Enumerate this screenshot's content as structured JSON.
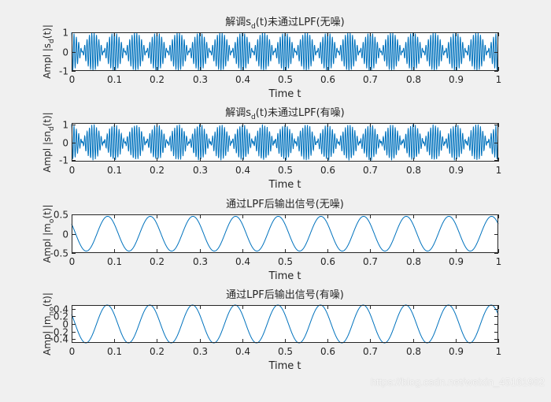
{
  "chart_data": [
    {
      "type": "line",
      "title": "解调s_d(t)未通过LPF(无噪)",
      "title_parts": [
        "解调s",
        "d",
        "(t)未通过LPF(无噪)"
      ],
      "xlabel": "Time t",
      "ylabel_parts": [
        "Ampl |s",
        "d",
        "(t)|"
      ],
      "xlim": [
        0,
        1
      ],
      "ylim": [
        -1,
        1
      ],
      "xticks": [
        "0",
        "0.1",
        "0.2",
        "0.3",
        "0.4",
        "0.5",
        "0.6",
        "0.7",
        "0.8",
        "0.9",
        "1"
      ],
      "yticks": [
        "-1",
        "0",
        "1"
      ],
      "yticks_values": [
        -1,
        0,
        1
      ],
      "color": "#0072BD",
      "signal": {
        "kind": "modulated",
        "envelope_freq": 10,
        "carrier_freq": 180,
        "amplitude": 1,
        "noise": 0
      }
    },
    {
      "type": "line",
      "title": "解调s_d(t)未通过LPF(有噪)",
      "title_parts": [
        "解调s",
        "d",
        "(t)未通过LPF(有噪)"
      ],
      "xlabel": "Time t",
      "ylabel_parts": [
        "Ampl |sn",
        "d",
        "(t)|"
      ],
      "xlim": [
        0,
        1
      ],
      "ylim": [
        -1.1,
        1.1
      ],
      "xticks": [
        "0",
        "0.1",
        "0.2",
        "0.3",
        "0.4",
        "0.5",
        "0.6",
        "0.7",
        "0.8",
        "0.9",
        "1"
      ],
      "yticks": [
        "-1",
        "0",
        "1"
      ],
      "yticks_values": [
        -1,
        0,
        1
      ],
      "color": "#0072BD",
      "signal": {
        "kind": "modulated",
        "envelope_freq": 10,
        "carrier_freq": 180,
        "amplitude": 1,
        "noise": 0.05
      }
    },
    {
      "type": "line",
      "title": "通过LPF后输出信号(无噪)",
      "title_parts": [
        "通过LPF后输出信号(无噪)",
        "",
        ""
      ],
      "xlabel": "Time t",
      "ylabel_parts": [
        "Ampl |m",
        "o",
        "(t)|"
      ],
      "xlim": [
        0,
        1
      ],
      "ylim": [
        -0.5,
        0.5
      ],
      "xticks": [
        "0",
        "0.1",
        "0.2",
        "0.3",
        "0.4",
        "0.5",
        "0.6",
        "0.7",
        "0.8",
        "0.9",
        "1"
      ],
      "yticks": [
        "-0.5",
        "0",
        "0.5"
      ],
      "yticks_values": [
        -0.5,
        0,
        0.5
      ],
      "color": "#0072BD",
      "signal": {
        "kind": "cosine",
        "freq": 10,
        "amplitude": 0.45,
        "start_value": 0.25,
        "noise": 0
      }
    },
    {
      "type": "line",
      "title": "通过LPF后输出信号(有噪)",
      "title_parts": [
        "通过LPF后输出信号(有噪)",
        "",
        ""
      ],
      "xlabel": "Time t",
      "ylabel_parts": [
        "Ampl |m",
        "no",
        "(t)|"
      ],
      "xlim": [
        0,
        1
      ],
      "ylim": [
        -0.5,
        0.5
      ],
      "xticks": [
        "0",
        "0.1",
        "0.2",
        "0.3",
        "0.4",
        "0.5",
        "0.6",
        "0.7",
        "0.8",
        "0.9",
        "1"
      ],
      "yticks": [
        "-0.4",
        "-0.2",
        "0",
        "0.2",
        "0.4"
      ],
      "yticks_values": [
        -0.4,
        -0.2,
        0,
        0.2,
        0.4
      ],
      "color": "#0072BD",
      "signal": {
        "kind": "cosine",
        "freq": 10,
        "amplitude": 0.5,
        "start_value": 0.25,
        "noise": 0
      }
    }
  ],
  "watermark": "https://blog.csdn.net/weixin_45161982"
}
